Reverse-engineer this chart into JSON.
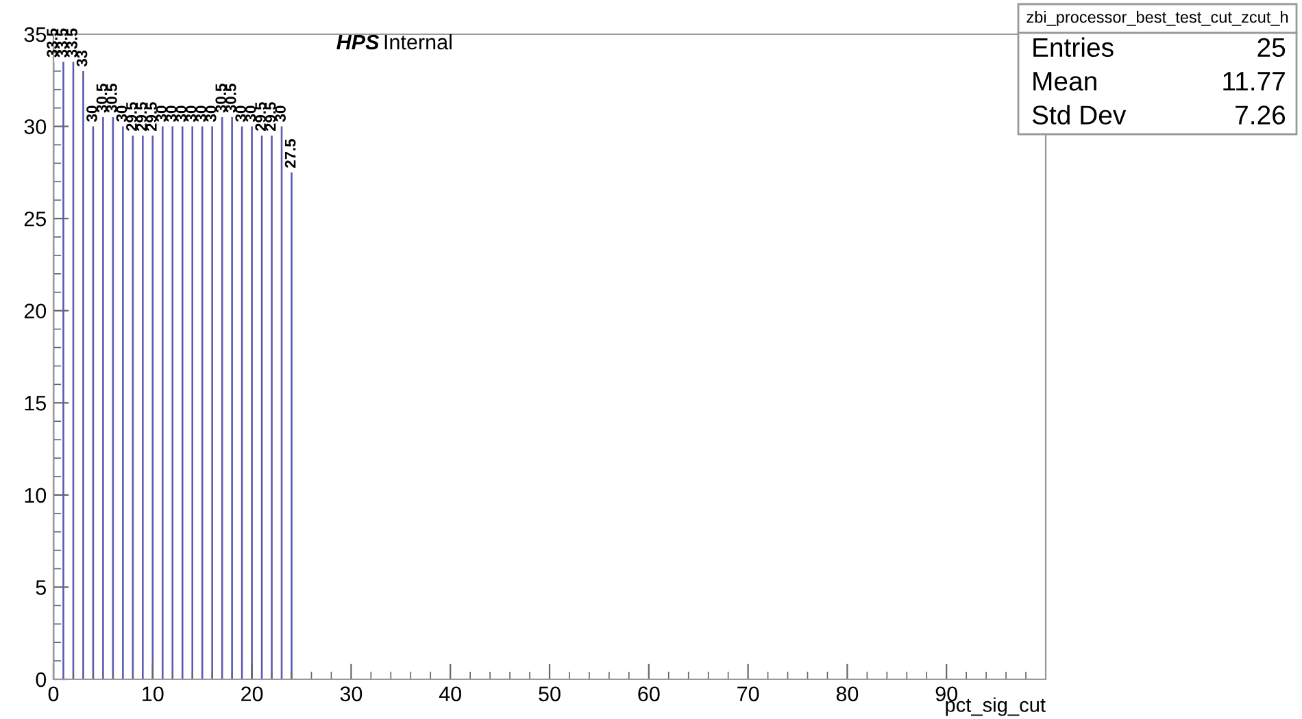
{
  "chart_data": {
    "type": "bar",
    "xlabel": "pct_sig_cut",
    "x": [
      0,
      1,
      2,
      3,
      4,
      5,
      6,
      7,
      8,
      9,
      10,
      11,
      12,
      13,
      14,
      15,
      16,
      17,
      18,
      19,
      20,
      21,
      22,
      23,
      24
    ],
    "values": [
      33.5,
      33.5,
      33.5,
      33,
      30,
      30.5,
      30.5,
      30,
      29.5,
      29.5,
      29.5,
      30,
      30,
      30,
      30,
      30,
      30,
      30.5,
      30.5,
      30,
      30,
      29.5,
      29.5,
      30,
      27.5
    ],
    "color": "#5a5ab4",
    "data_labels": true,
    "xlim": [
      0,
      100
    ],
    "xticks": [
      0,
      10,
      20,
      30,
      40,
      50,
      60,
      70,
      80,
      90
    ],
    "ylim": [
      0,
      35
    ],
    "yticks": [
      0,
      5,
      10,
      15,
      20,
      25,
      30,
      35
    ],
    "annotations": [
      "HPS Internal",
      "zbi_processor_best_test_cut_zcut_h",
      "Entries 25",
      "Mean 11.77",
      "Std Dev 7.26"
    ]
  }
}
